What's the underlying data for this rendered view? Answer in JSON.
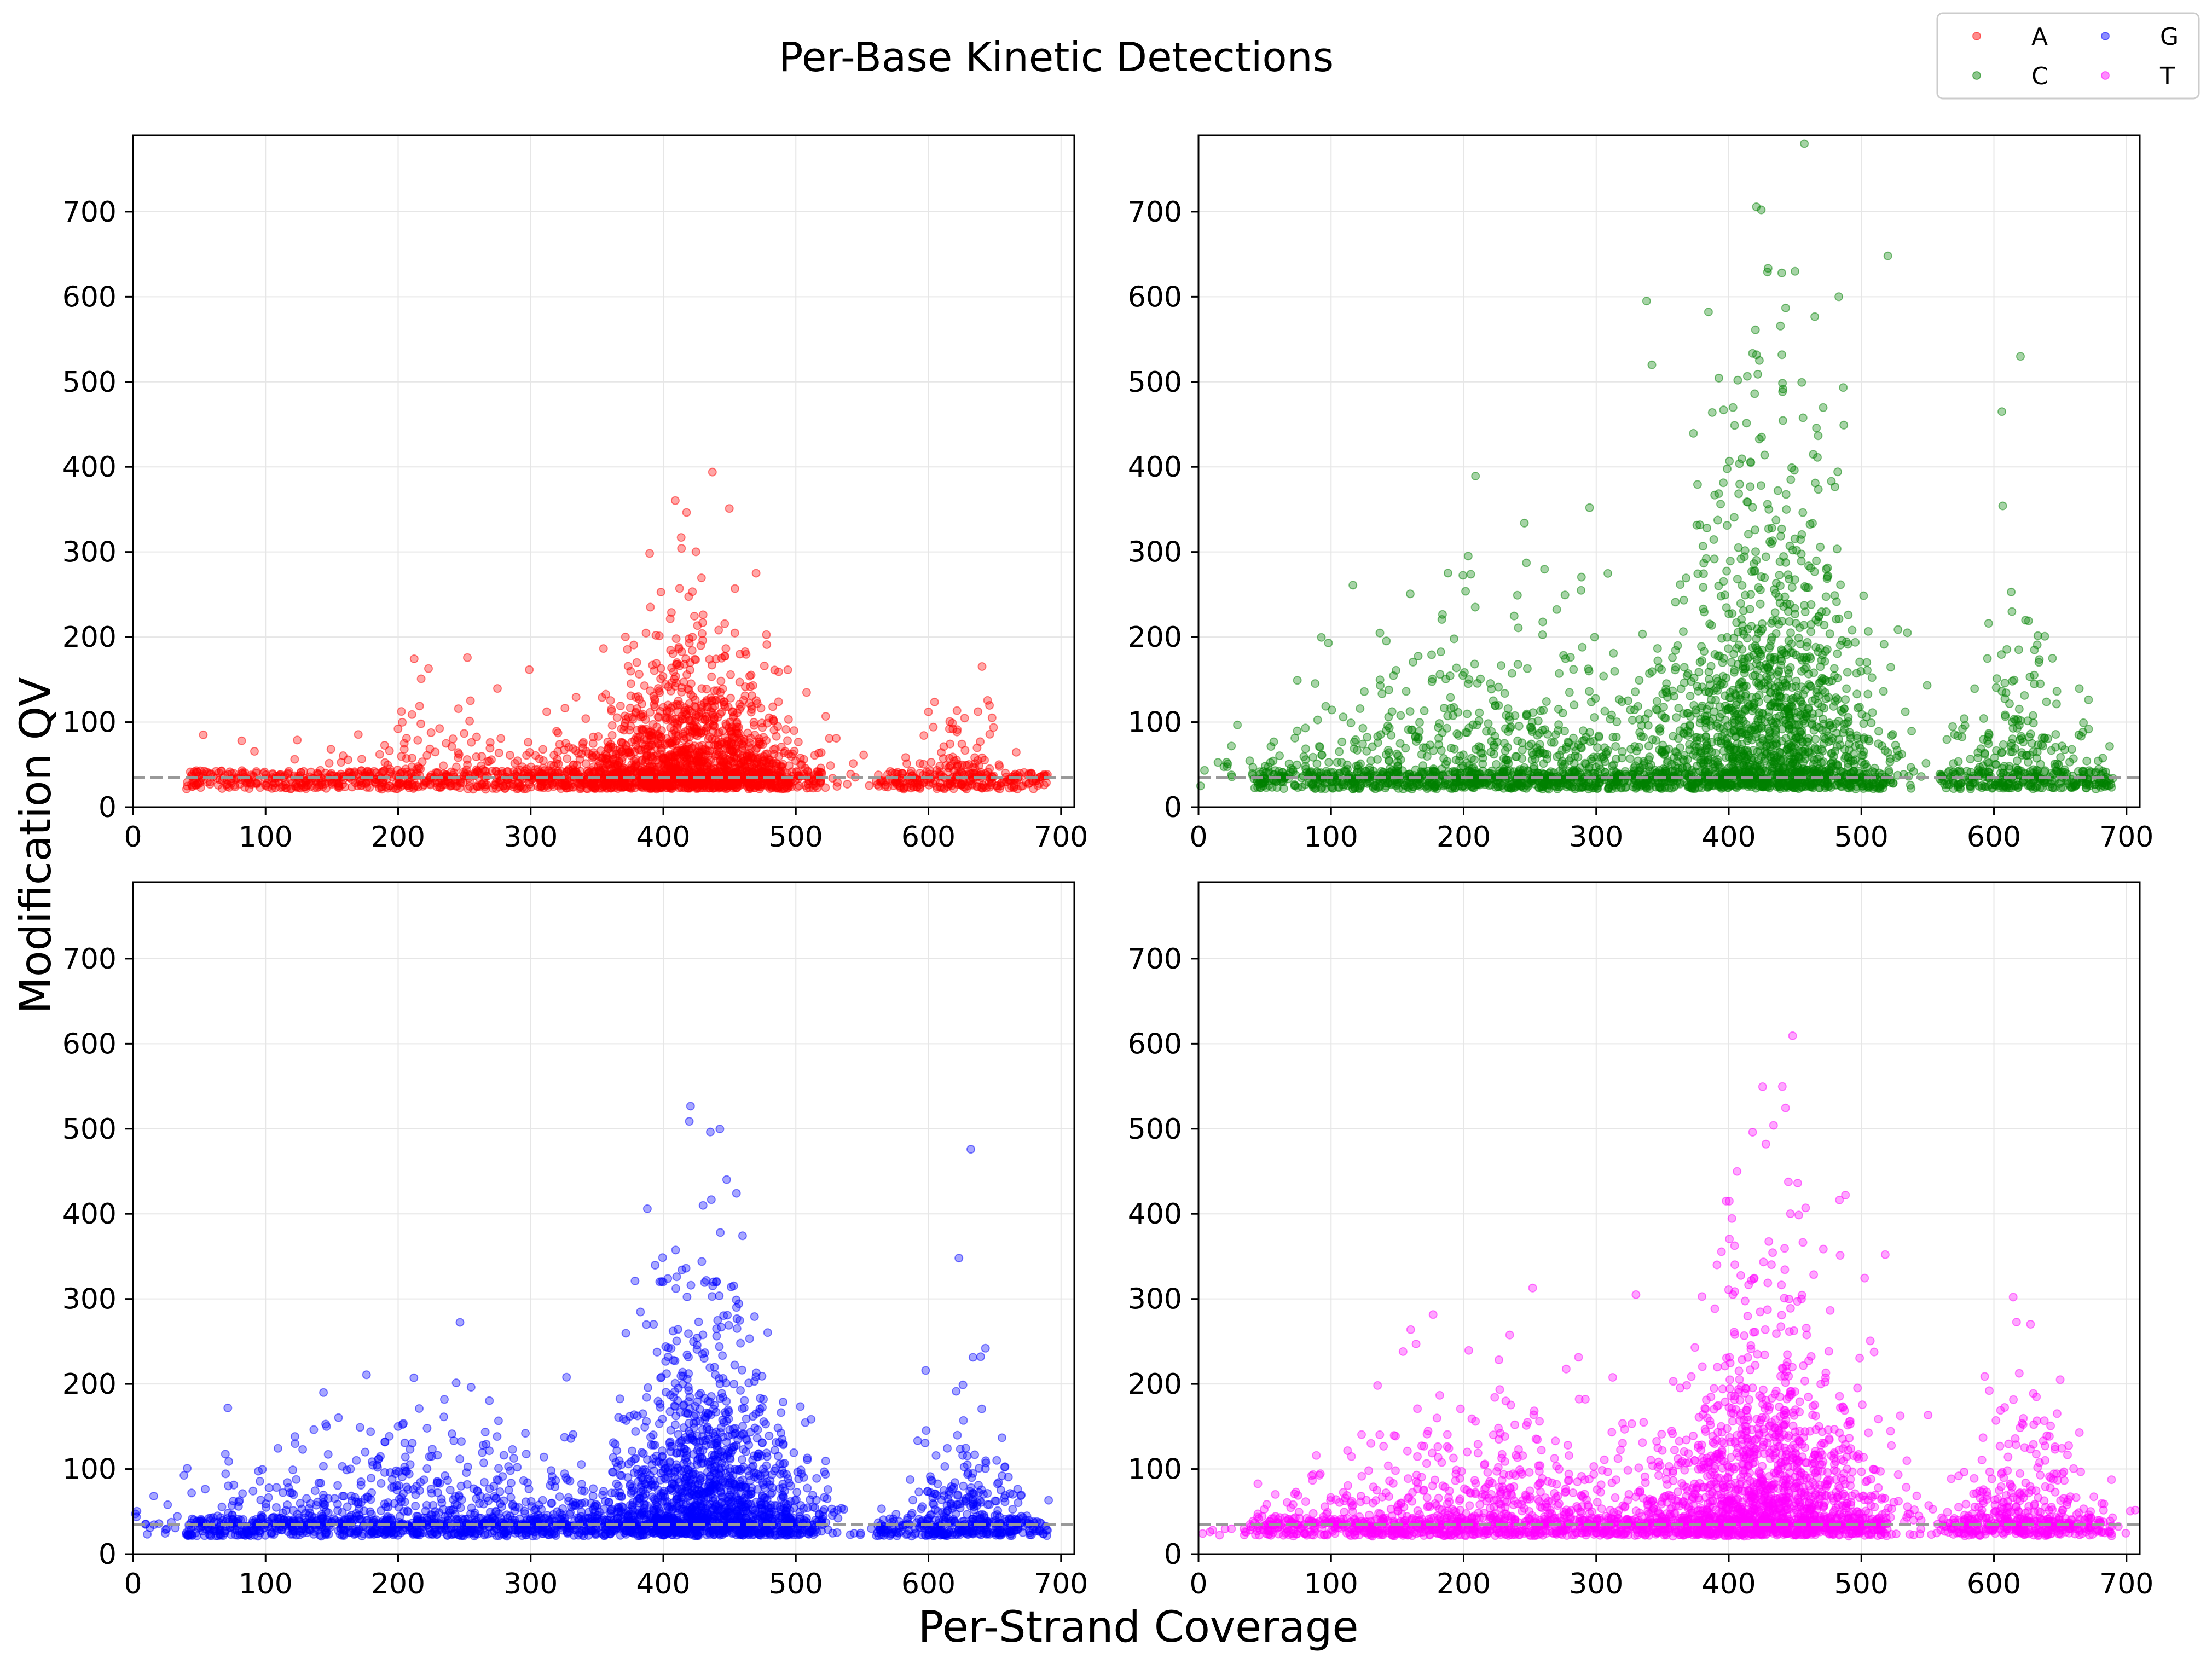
{
  "figure": {
    "title": "Per-Base Kinetic Detections",
    "xlabel": "Per-Strand Coverage",
    "ylabel": "Modification QV"
  },
  "legend": {
    "placement": "top-right",
    "items": [
      {
        "label": "A",
        "color": "#ff0000"
      },
      {
        "label": "C",
        "color": "#008000"
      },
      {
        "label": "G",
        "color": "#0000ff"
      },
      {
        "label": "T",
        "color": "#ff00ff"
      }
    ]
  },
  "chart_data": [
    {
      "type": "scatter",
      "series_name": "A",
      "color": "#ff0000",
      "xlim": [
        0,
        710
      ],
      "ylim": [
        0,
        790
      ],
      "xticks": [
        0,
        100,
        200,
        300,
        400,
        500,
        600,
        700
      ],
      "yticks": [
        0,
        100,
        200,
        300,
        400,
        500,
        600,
        700
      ],
      "threshold_line": 35,
      "grid": true,
      "point_alpha": 0.35,
      "clusters": [
        {
          "center": 420,
          "spread": 45,
          "weight": 1.0,
          "ymax_typical": 120
        },
        {
          "center": 250,
          "spread": 70,
          "weight": 0.18,
          "ymax_typical": 60
        },
        {
          "center": 625,
          "spread": 20,
          "weight": 0.08,
          "ymax_typical": 70
        }
      ],
      "notable_points": [
        [
          470,
          275
        ],
        [
          422,
          200
        ],
        [
          53,
          85
        ],
        [
          82,
          78
        ],
        [
          600,
          112
        ],
        [
          648,
          105
        ],
        [
          380,
          170
        ]
      ]
    },
    {
      "type": "scatter",
      "series_name": "C",
      "color": "#008000",
      "xlim": [
        0,
        710
      ],
      "ylim": [
        0,
        790
      ],
      "xticks": [
        0,
        100,
        200,
        300,
        400,
        500,
        600,
        700
      ],
      "yticks": [
        0,
        100,
        200,
        300,
        400,
        500,
        600,
        700
      ],
      "threshold_line": 35,
      "grid": true,
      "point_alpha": 0.35,
      "clusters": [
        {
          "center": 430,
          "spread": 45,
          "weight": 1.0,
          "ymax_typical": 260
        },
        {
          "center": 230,
          "spread": 100,
          "weight": 0.55,
          "ymax_typical": 120
        },
        {
          "center": 625,
          "spread": 30,
          "weight": 0.18,
          "ymax_typical": 150
        }
      ],
      "notable_points": [
        [
          457,
          780
        ],
        [
          520,
          648
        ],
        [
          450,
          630
        ],
        [
          440,
          628
        ],
        [
          338,
          595
        ],
        [
          483,
          600
        ],
        [
          620,
          530
        ],
        [
          342,
          520
        ],
        [
          606,
          465
        ],
        [
          98,
          193
        ],
        [
          295,
          352
        ]
      ]
    },
    {
      "type": "scatter",
      "series_name": "G",
      "color": "#0000ff",
      "xlim": [
        0,
        710
      ],
      "ylim": [
        0,
        790
      ],
      "xticks": [
        0,
        100,
        200,
        300,
        400,
        500,
        600,
        700
      ],
      "yticks": [
        0,
        100,
        200,
        300,
        400,
        500,
        600,
        700
      ],
      "threshold_line": 35,
      "grid": true,
      "point_alpha": 0.35,
      "clusters": [
        {
          "center": 430,
          "spread": 42,
          "weight": 1.0,
          "ymax_typical": 170
        },
        {
          "center": 220,
          "spread": 95,
          "weight": 0.5,
          "ymax_typical": 90
        },
        {
          "center": 630,
          "spread": 28,
          "weight": 0.2,
          "ymax_typical": 90
        }
      ],
      "notable_points": [
        [
          632,
          476
        ],
        [
          430,
          410
        ],
        [
          388,
          406
        ],
        [
          443,
          378
        ],
        [
          623,
          348
        ],
        [
          643,
          242
        ],
        [
          327,
          208
        ],
        [
          128,
          123
        ],
        [
          200,
          150
        ]
      ]
    },
    {
      "type": "scatter",
      "series_name": "T",
      "color": "#ff00ff",
      "xlim": [
        0,
        710
      ],
      "ylim": [
        0,
        790
      ],
      "xticks": [
        0,
        100,
        200,
        300,
        400,
        500,
        600,
        700
      ],
      "yticks": [
        0,
        100,
        200,
        300,
        400,
        500,
        600,
        700
      ],
      "threshold_line": 35,
      "grid": true,
      "point_alpha": 0.35,
      "clusters": [
        {
          "center": 430,
          "spread": 45,
          "weight": 1.0,
          "ymax_typical": 190
        },
        {
          "center": 220,
          "spread": 100,
          "weight": 0.55,
          "ymax_typical": 100
        },
        {
          "center": 625,
          "spread": 30,
          "weight": 0.22,
          "ymax_typical": 110
        }
      ],
      "notable_points": [
        [
          418,
          496
        ],
        [
          428,
          482
        ],
        [
          488,
          422
        ],
        [
          398,
          415
        ],
        [
          458,
          407
        ],
        [
          518,
          352
        ],
        [
          330,
          305
        ],
        [
          650,
          205
        ]
      ]
    }
  ]
}
